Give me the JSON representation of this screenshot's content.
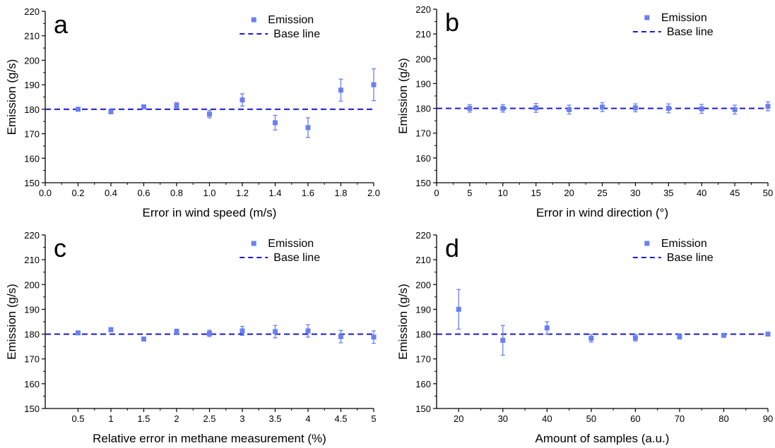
{
  "chart_data": [
    {
      "panel": "a",
      "type": "scatter",
      "xlabel": "Error in wind speed (m/s)",
      "ylabel": "Emission (g/s)",
      "xlim": [
        0.0,
        2.0
      ],
      "ylim": [
        150,
        220
      ],
      "xticks": [
        0.0,
        0.2,
        0.4,
        0.6,
        0.8,
        1.0,
        1.2,
        1.4,
        1.6,
        1.8,
        2.0
      ],
      "xtick_labels": [
        "0.0",
        "0.2",
        "0.4",
        "0.6",
        "0.8",
        "1.0",
        "1.2",
        "1.4",
        "1.6",
        "1.8",
        "2.0"
      ],
      "yticks": [
        150,
        160,
        170,
        180,
        190,
        200,
        210,
        220
      ],
      "ytick_labels": [
        "150",
        "160",
        "170",
        "180",
        "190",
        "200",
        "210",
        "220"
      ],
      "legend": [
        "Emission",
        "Base line"
      ],
      "legend_position": "top-right",
      "baseline": 180,
      "points": [
        {
          "x": 0.2,
          "y": 180.0,
          "err": 0.7
        },
        {
          "x": 0.4,
          "y": 179.0,
          "err": 0.8
        },
        {
          "x": 0.6,
          "y": 181.0,
          "err": 0.7
        },
        {
          "x": 0.8,
          "y": 181.5,
          "err": 1.2
        },
        {
          "x": 1.0,
          "y": 178.0,
          "err": 1.5
        },
        {
          "x": 1.2,
          "y": 183.8,
          "err": 2.5
        },
        {
          "x": 1.4,
          "y": 174.5,
          "err": 3.0
        },
        {
          "x": 1.6,
          "y": 172.5,
          "err": 4.0
        },
        {
          "x": 1.8,
          "y": 187.8,
          "err": 4.5
        },
        {
          "x": 2.0,
          "y": 190.0,
          "err": 6.5
        }
      ]
    },
    {
      "panel": "b",
      "type": "scatter",
      "xlabel": "Error in wind direction (°)",
      "ylabel": "Emission (g/s)",
      "xlim": [
        0,
        50
      ],
      "ylim": [
        150,
        220
      ],
      "xticks": [
        0,
        5,
        10,
        15,
        20,
        25,
        30,
        35,
        40,
        45,
        50
      ],
      "xtick_labels": [
        "0",
        "5",
        "10",
        "15",
        "20",
        "25",
        "30",
        "35",
        "40",
        "45",
        "50"
      ],
      "yticks": [
        150,
        160,
        170,
        180,
        190,
        200,
        210,
        220
      ],
      "ytick_labels": [
        "150",
        "160",
        "170",
        "180",
        "190",
        "200",
        "210",
        "220"
      ],
      "legend": [
        "Emission",
        "Base line"
      ],
      "legend_position": "top-right",
      "baseline": 180,
      "points": [
        {
          "x": 5,
          "y": 180.0,
          "err": 1.5
        },
        {
          "x": 10,
          "y": 180.0,
          "err": 1.5
        },
        {
          "x": 15,
          "y": 180.2,
          "err": 1.8
        },
        {
          "x": 20,
          "y": 179.5,
          "err": 1.8
        },
        {
          "x": 25,
          "y": 180.5,
          "err": 1.8
        },
        {
          "x": 30,
          "y": 180.2,
          "err": 1.6
        },
        {
          "x": 35,
          "y": 180.0,
          "err": 1.8
        },
        {
          "x": 40,
          "y": 179.8,
          "err": 1.8
        },
        {
          "x": 45,
          "y": 179.5,
          "err": 1.8
        },
        {
          "x": 50,
          "y": 180.8,
          "err": 1.8
        }
      ]
    },
    {
      "panel": "c",
      "type": "scatter",
      "xlabel": "Relative error in methane measurement (%)",
      "ylabel": "Emission (g/s)",
      "xlim": [
        0,
        5
      ],
      "ylim": [
        150,
        220
      ],
      "xticks": [
        0.5,
        1,
        1.5,
        2,
        2.5,
        3,
        3.5,
        4,
        4.5,
        5
      ],
      "xtick_labels": [
        "0.5",
        "1",
        "1.5",
        "2",
        "2.5",
        "3",
        "3.5",
        "4",
        "4.5",
        "5"
      ],
      "yticks": [
        150,
        160,
        170,
        180,
        190,
        200,
        210,
        220
      ],
      "ytick_labels": [
        "150",
        "160",
        "170",
        "180",
        "190",
        "200",
        "210",
        "220"
      ],
      "legend": [
        "Emission",
        "Base line"
      ],
      "legend_position": "top-right",
      "baseline": 180,
      "points": [
        {
          "x": 0.5,
          "y": 180.5,
          "err": 0.7
        },
        {
          "x": 1.0,
          "y": 181.8,
          "err": 0.8
        },
        {
          "x": 1.5,
          "y": 178.0,
          "err": 0.6
        },
        {
          "x": 2.0,
          "y": 181.0,
          "err": 1.0
        },
        {
          "x": 2.5,
          "y": 180.3,
          "err": 1.3
        },
        {
          "x": 3.0,
          "y": 181.3,
          "err": 1.8
        },
        {
          "x": 3.5,
          "y": 181.0,
          "err": 2.5
        },
        {
          "x": 4.0,
          "y": 181.3,
          "err": 2.5
        },
        {
          "x": 4.5,
          "y": 179.0,
          "err": 2.5
        },
        {
          "x": 5.0,
          "y": 178.8,
          "err": 2.5
        }
      ]
    },
    {
      "panel": "d",
      "type": "scatter",
      "xlabel": "Amount of samples (a.u.)",
      "ylabel": "Emission (g/s)",
      "xlim": [
        15,
        90
      ],
      "ylim": [
        150,
        220
      ],
      "xticks": [
        20,
        30,
        40,
        50,
        60,
        70,
        80,
        90
      ],
      "xtick_labels": [
        "20",
        "30",
        "40",
        "50",
        "60",
        "70",
        "80",
        "90"
      ],
      "yticks": [
        150,
        160,
        170,
        180,
        190,
        200,
        210,
        220
      ],
      "ytick_labels": [
        "150",
        "160",
        "170",
        "180",
        "190",
        "200",
        "210",
        "220"
      ],
      "legend": [
        "Emission",
        "Base line"
      ],
      "legend_position": "top-right",
      "baseline": 180,
      "points": [
        {
          "x": 20,
          "y": 190.0,
          "err": 8.0
        },
        {
          "x": 30,
          "y": 177.5,
          "err": 6.0
        },
        {
          "x": 40,
          "y": 182.5,
          "err": 2.5
        },
        {
          "x": 50,
          "y": 178.3,
          "err": 1.5
        },
        {
          "x": 60,
          "y": 178.5,
          "err": 1.3
        },
        {
          "x": 70,
          "y": 179.0,
          "err": 1.0
        },
        {
          "x": 80,
          "y": 179.5,
          "err": 0.5
        },
        {
          "x": 90,
          "y": 180.0,
          "err": 0.5
        }
      ]
    }
  ],
  "colors": {
    "marker": "#6a7ff2",
    "baseline": "#1a1ad6",
    "axis": "#000000"
  }
}
